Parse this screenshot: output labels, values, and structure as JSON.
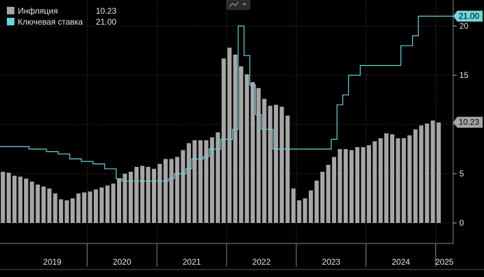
{
  "chart_data": {
    "type": "bar",
    "title": "",
    "xlabel": "",
    "ylabel": "",
    "ylim": [
      -3,
      22
    ],
    "y_ticks": [
      0,
      5,
      10,
      15,
      20
    ],
    "y_tick_labels": [
      "0",
      "5",
      "10",
      "15",
      "20"
    ],
    "grid": "dotted",
    "legend_position": "top-left",
    "x_start": "2018-10",
    "x_end": "2025-04",
    "years": [
      "2019",
      "2020",
      "2021",
      "2022",
      "2023",
      "2024",
      "2025"
    ],
    "series": [
      {
        "name": "Инфляция",
        "kind": "bar",
        "color": "#a6a6a6",
        "last_value_label": "10.23",
        "values": [
          5.2,
          5.1,
          4.8,
          4.7,
          4.5,
          4.2,
          3.9,
          3.7,
          3.5,
          3.0,
          2.4,
          2.3,
          2.5,
          3.0,
          3.1,
          3.2,
          3.4,
          3.6,
          3.8,
          4.0,
          4.5,
          5.0,
          5.2,
          5.7,
          5.8,
          5.7,
          5.5,
          6.0,
          6.5,
          6.5,
          6.7,
          7.4,
          8.1,
          8.4,
          8.4,
          8.4,
          8.7,
          9.2,
          16.7,
          17.8,
          17.1,
          15.9,
          15.1,
          14.3,
          13.7,
          12.6,
          11.9,
          12.0,
          11.8,
          10.9,
          3.5,
          2.3,
          2.5,
          3.3,
          4.3,
          5.2,
          5.9,
          6.7,
          7.5,
          7.5,
          7.4,
          7.7,
          7.7,
          7.9,
          8.3,
          8.6,
          9.1,
          9.0,
          8.6,
          8.6,
          8.9,
          9.5,
          9.9,
          10.1,
          10.4,
          10.2
        ]
      },
      {
        "name": "Ключевая ставка",
        "kind": "line",
        "color": "#6fd6dc",
        "last_value_label": "21.00",
        "points": [
          [
            "2018-10",
            7.75
          ],
          [
            "2019-01",
            7.75
          ],
          [
            "2019-03",
            7.5
          ],
          [
            "2019-06",
            7.25
          ],
          [
            "2019-08",
            7.0
          ],
          [
            "2019-10",
            6.5
          ],
          [
            "2019-12",
            6.25
          ],
          [
            "2020-02",
            6.0
          ],
          [
            "2020-04",
            5.5
          ],
          [
            "2020-06",
            4.5
          ],
          [
            "2020-07",
            4.25
          ],
          [
            "2021-03",
            4.5
          ],
          [
            "2021-04",
            5.0
          ],
          [
            "2021-06",
            5.5
          ],
          [
            "2021-07",
            6.5
          ],
          [
            "2021-09",
            6.75
          ],
          [
            "2021-10",
            7.5
          ],
          [
            "2021-12",
            8.5
          ],
          [
            "2022-02",
            9.5
          ],
          [
            "2022-03",
            20.0
          ],
          [
            "2022-04",
            17.0
          ],
          [
            "2022-05",
            14.0
          ],
          [
            "2022-06",
            11.0
          ],
          [
            "2022-07",
            9.5
          ],
          [
            "2022-09",
            7.5
          ],
          [
            "2023-07",
            8.5
          ],
          [
            "2023-08",
            12.0
          ],
          [
            "2023-09",
            13.0
          ],
          [
            "2023-10",
            15.0
          ],
          [
            "2023-12",
            16.0
          ],
          [
            "2024-07",
            18.0
          ],
          [
            "2024-09",
            19.0
          ],
          [
            "2024-10",
            21.0
          ],
          [
            "2025-04",
            21.0
          ]
        ]
      }
    ]
  }
}
